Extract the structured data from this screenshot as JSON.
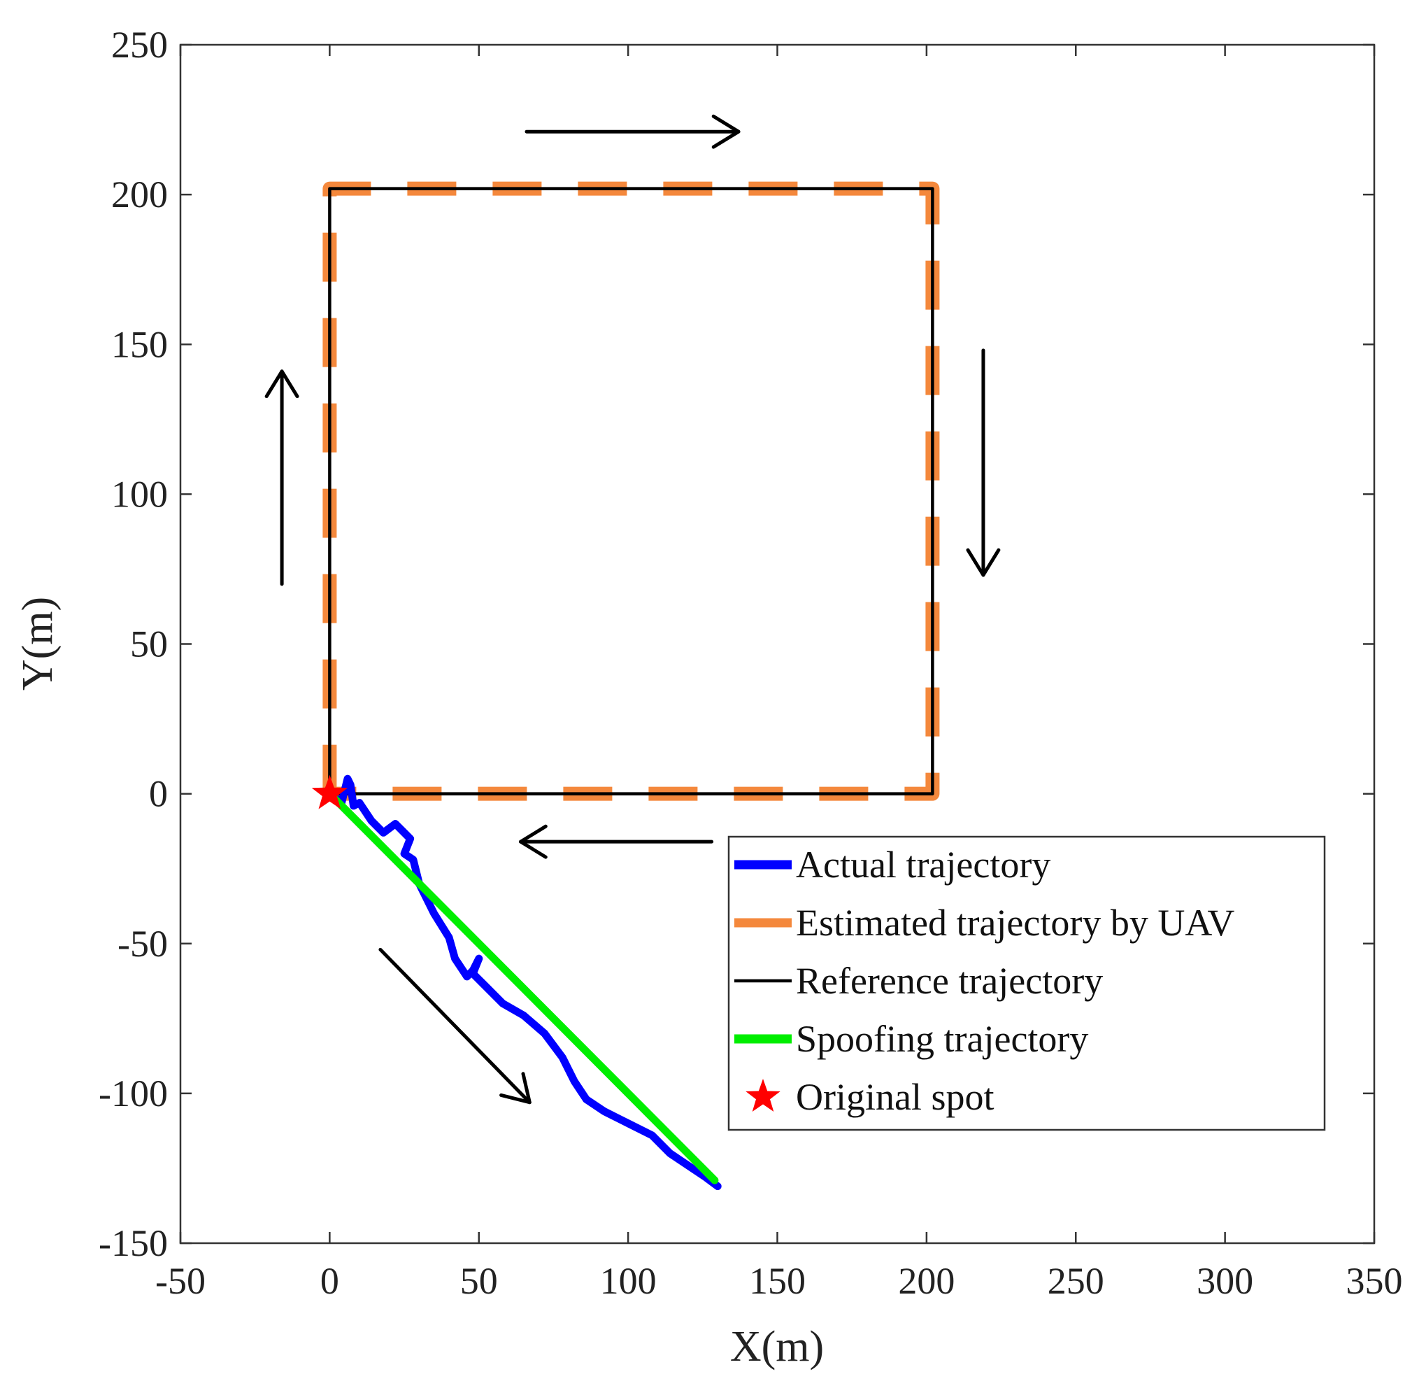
{
  "chart_data": {
    "type": "line",
    "title": "",
    "xlabel": "X(m)",
    "ylabel": "Y(m)",
    "xlim": [
      -50,
      350
    ],
    "ylim": [
      -150,
      250
    ],
    "xticks": [
      -50,
      0,
      50,
      100,
      150,
      200,
      250,
      300,
      350
    ],
    "yticks": [
      -150,
      -100,
      -50,
      0,
      50,
      100,
      150,
      200,
      250
    ],
    "xtick_labels": [
      "-50",
      "0",
      "50",
      "100",
      "150",
      "200",
      "250",
      "300",
      "350"
    ],
    "ytick_labels": [
      "-150",
      "-100",
      "-50",
      "0",
      "50",
      "100",
      "150",
      "200",
      "250"
    ],
    "grid": false,
    "legend_position": "lower-right",
    "series": [
      {
        "name": "Actual trajectory",
        "color": "#0000ff",
        "style": "solid-thick",
        "x": [
          0,
          4,
          6,
          7,
          8,
          10,
          14,
          18,
          22,
          25,
          27,
          25,
          28,
          30,
          35,
          40,
          42,
          44,
          46,
          48,
          50,
          48,
          52,
          58,
          65,
          72,
          78,
          82,
          86,
          92,
          100,
          108,
          114,
          120,
          126,
          130
        ],
        "y": [
          0,
          -3,
          5,
          3,
          -4,
          -3,
          -9,
          -13,
          -10,
          -13,
          -15,
          -20,
          -22,
          -30,
          -40,
          -48,
          -55,
          -58,
          -61,
          -59,
          -55,
          -60,
          -64,
          -70,
          -74,
          -80,
          -88,
          -96,
          -102,
          -106,
          -110,
          -114,
          -120,
          -124,
          -128,
          -131
        ]
      },
      {
        "name": "Estimated trajectory by UAV",
        "color": "#f4883c",
        "style": "dashed-thick",
        "x": [
          0,
          0,
          202,
          202,
          0
        ],
        "y": [
          0,
          202,
          202,
          0,
          0
        ]
      },
      {
        "name": "Reference trajectory",
        "color": "#000000",
        "style": "solid-thin",
        "x": [
          0,
          0,
          202,
          202,
          0
        ],
        "y": [
          0,
          202,
          202,
          0,
          0
        ]
      },
      {
        "name": "Spoofing trajectory",
        "color": "#00ee00",
        "style": "solid-thick",
        "x": [
          0,
          129
        ],
        "y": [
          0,
          -129
        ]
      }
    ],
    "markers": [
      {
        "name": "Original spot",
        "color": "#ff0000",
        "shape": "star",
        "x": 0,
        "y": 0
      }
    ],
    "arrows": [
      {
        "direction": "right",
        "x1": 66,
        "y1": 221,
        "x2": 137,
        "y2": 221
      },
      {
        "direction": "down",
        "x1": 219,
        "y1": 148,
        "x2": 219,
        "y2": 73
      },
      {
        "direction": "left",
        "x1": 128,
        "y1": -16,
        "x2": 64,
        "y2": -16
      },
      {
        "direction": "up",
        "x1": -16,
        "y1": 70,
        "x2": -16,
        "y2": 141
      },
      {
        "direction": "down-right",
        "x1": 17,
        "y1": -52,
        "x2": 67,
        "y2": -103
      }
    ],
    "legend": [
      {
        "label": "Actual trajectory",
        "color": "#0000ff",
        "swatch": "line-thick"
      },
      {
        "label": "Estimated trajectory by UAV",
        "color": "#f4883c",
        "swatch": "line-thick"
      },
      {
        "label": "Reference trajectory",
        "color": "#000000",
        "swatch": "line-thin"
      },
      {
        "label": "Spoofing trajectory",
        "color": "#00ee00",
        "swatch": "line-thick"
      },
      {
        "label": "Original spot",
        "color": "#ff0000",
        "swatch": "star"
      }
    ]
  }
}
